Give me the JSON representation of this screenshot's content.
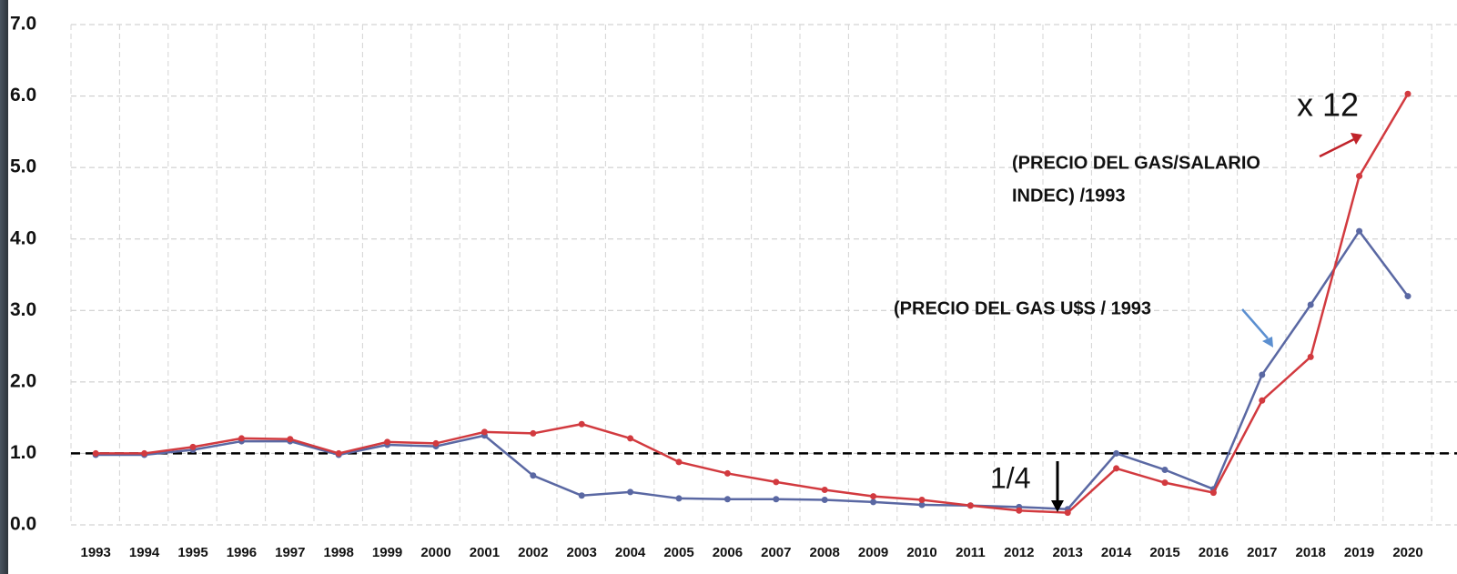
{
  "chart_data": {
    "type": "line",
    "categories": [
      "1993",
      "1994",
      "1995",
      "1996",
      "1997",
      "1998",
      "1999",
      "2000",
      "2001",
      "2002",
      "2003",
      "2004",
      "2005",
      "2006",
      "2007",
      "2008",
      "2009",
      "2010",
      "2011",
      "2012",
      "2013",
      "2014",
      "2015",
      "2016",
      "2017",
      "2018",
      "2019",
      "2020"
    ],
    "series": [
      {
        "color": "#5a68a3",
        "values": [
          0.98,
          0.98,
          1.05,
          1.17,
          1.17,
          0.98,
          1.12,
          1.1,
          1.25,
          0.69,
          0.41,
          0.46,
          0.37,
          0.36,
          0.36,
          0.35,
          0.32,
          0.28,
          0.27,
          0.25,
          0.22,
          1.0,
          0.77,
          0.5,
          2.1,
          3.08,
          4.11,
          3.2
        ]
      },
      {
        "color": "#d23a3f",
        "values": [
          1.0,
          1.0,
          1.09,
          1.21,
          1.2,
          1.0,
          1.16,
          1.14,
          1.3,
          1.28,
          1.41,
          1.21,
          0.88,
          0.72,
          0.6,
          0.49,
          0.4,
          0.35,
          0.27,
          0.2,
          0.17,
          0.79,
          0.59,
          0.45,
          1.74,
          2.35,
          4.88,
          6.03
        ]
      }
    ],
    "ylim": [
      0,
      7
    ],
    "yticks": [
      {
        "value": 0,
        "label": "0.0"
      },
      {
        "value": 1,
        "label": "1.0"
      },
      {
        "value": 2,
        "label": "2.0"
      },
      {
        "value": 3,
        "label": "3.0"
      },
      {
        "value": 4,
        "label": "4.0"
      },
      {
        "value": 5,
        "label": "5.0"
      },
      {
        "value": 6,
        "label": "6.0"
      },
      {
        "value": 7,
        "label": "7.0"
      }
    ],
    "grid": true,
    "reference_line": 1,
    "annotations": {
      "ratio_up": "x 12",
      "ratio_down": "1/4",
      "salary_series": [
        "(PRECIO DEL GAS/SALARIO",
        "INDEC) /1993"
      ],
      "usd_series": "(PRECIO DEL GAS U$S / 1993"
    }
  }
}
